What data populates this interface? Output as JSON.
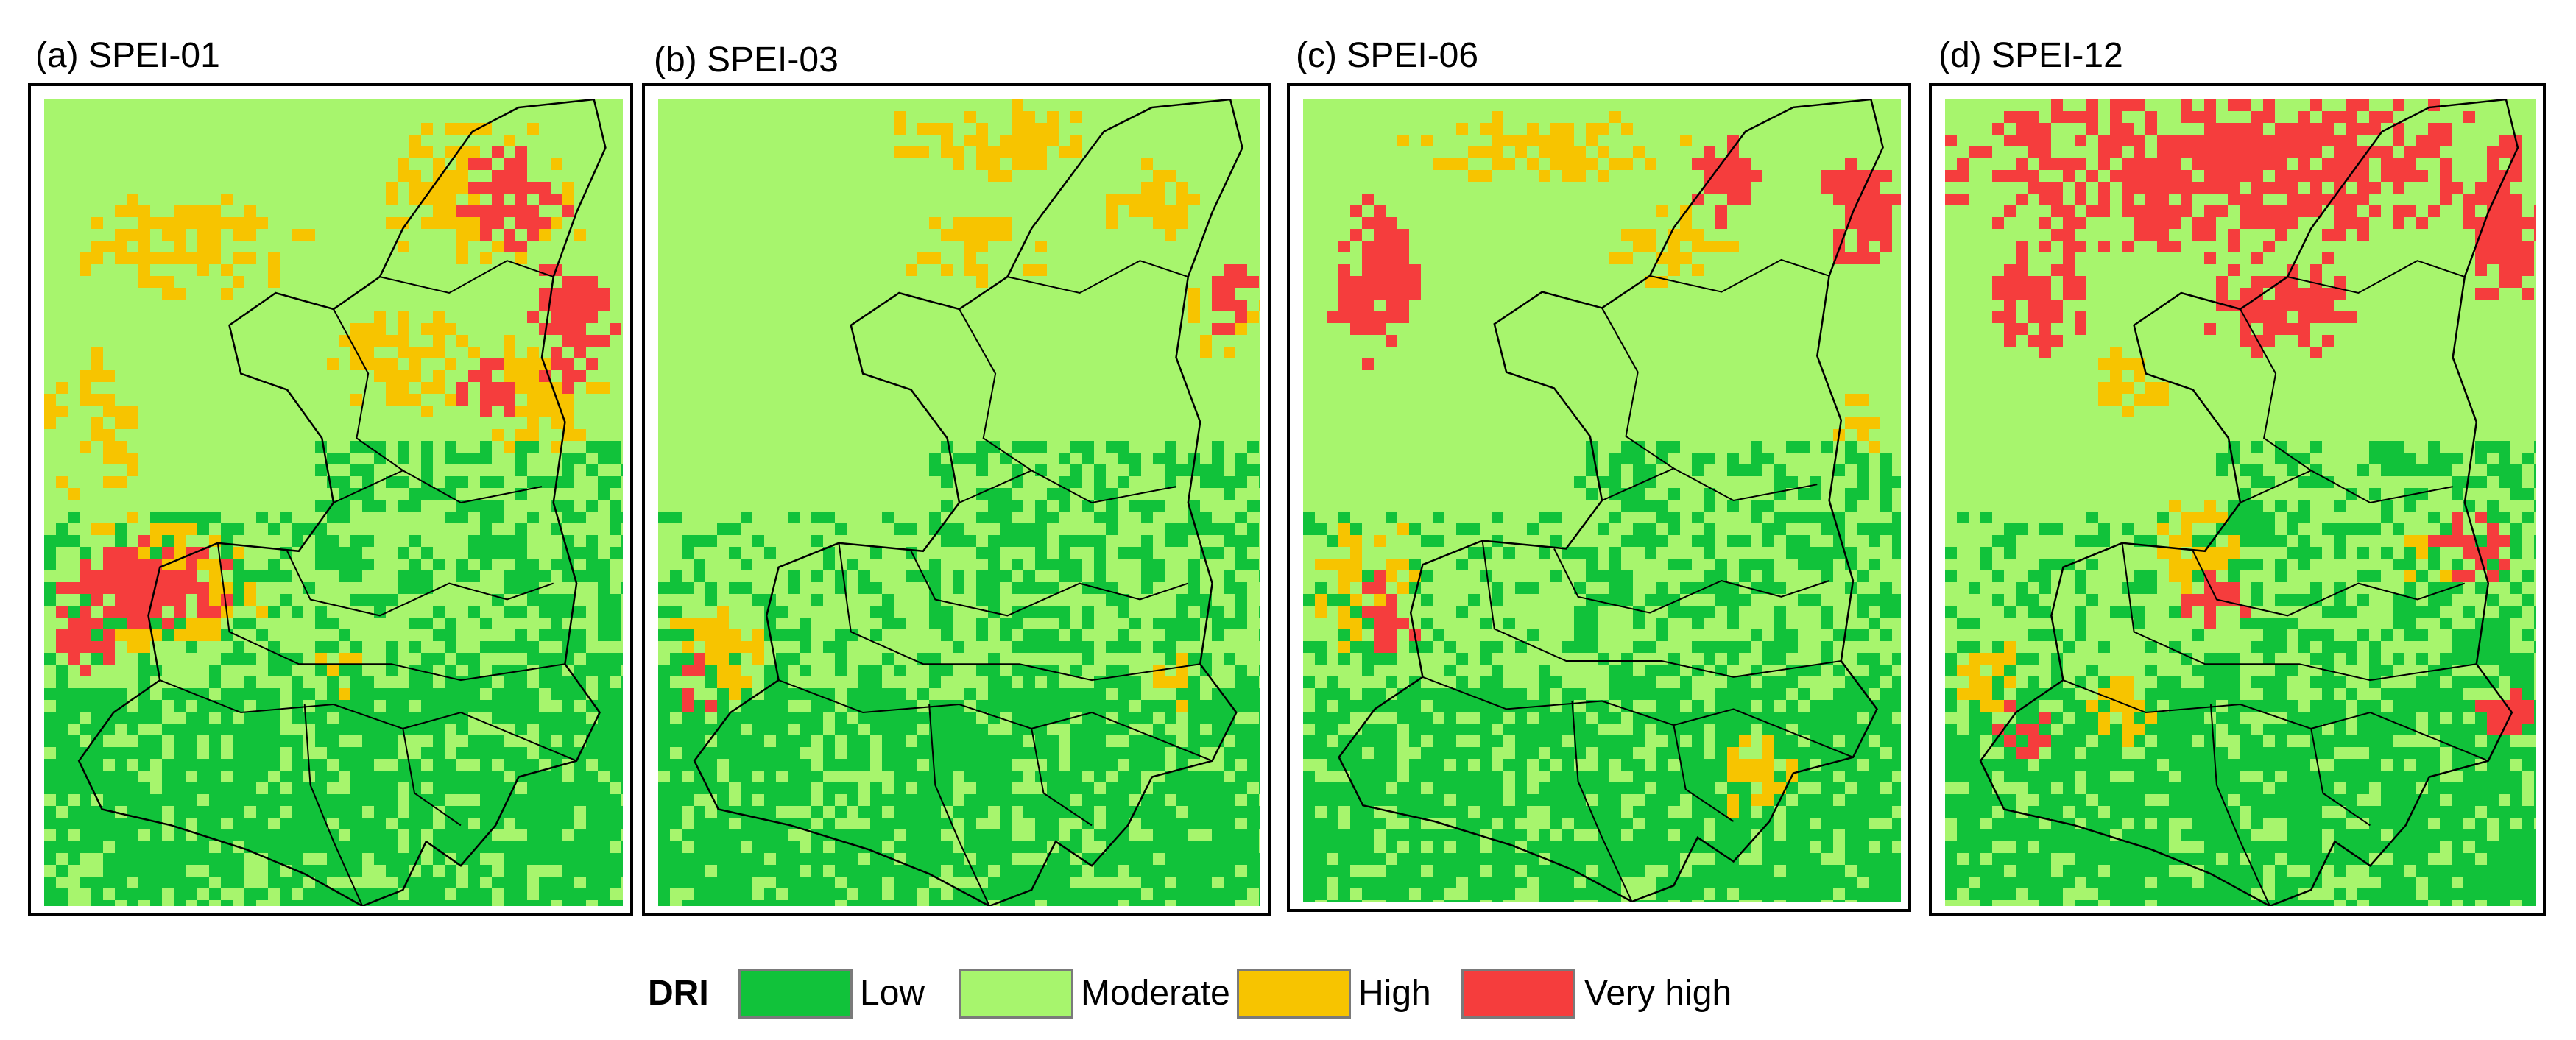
{
  "panels": [
    {
      "title": "(a) SPEI-01",
      "scenario": "spei01"
    },
    {
      "title": "(b) SPEI-03",
      "scenario": "spei03"
    },
    {
      "title": "(c) SPEI-06",
      "scenario": "spei06"
    },
    {
      "title": "(d) SPEI-12",
      "scenario": "spei12"
    }
  ],
  "legend": {
    "title": "DRI",
    "classes": [
      {
        "label": "Low",
        "color": "#11c23a"
      },
      {
        "label": "Moderate",
        "color": "#a7f56d"
      },
      {
        "label": "High",
        "color": "#f7c400"
      },
      {
        "label": "Very high",
        "color": "#f53d3d"
      }
    ]
  },
  "colors": {
    "boundary": "#000000",
    "frame": "#000000",
    "swatch_border": "#7a7a7a"
  }
}
